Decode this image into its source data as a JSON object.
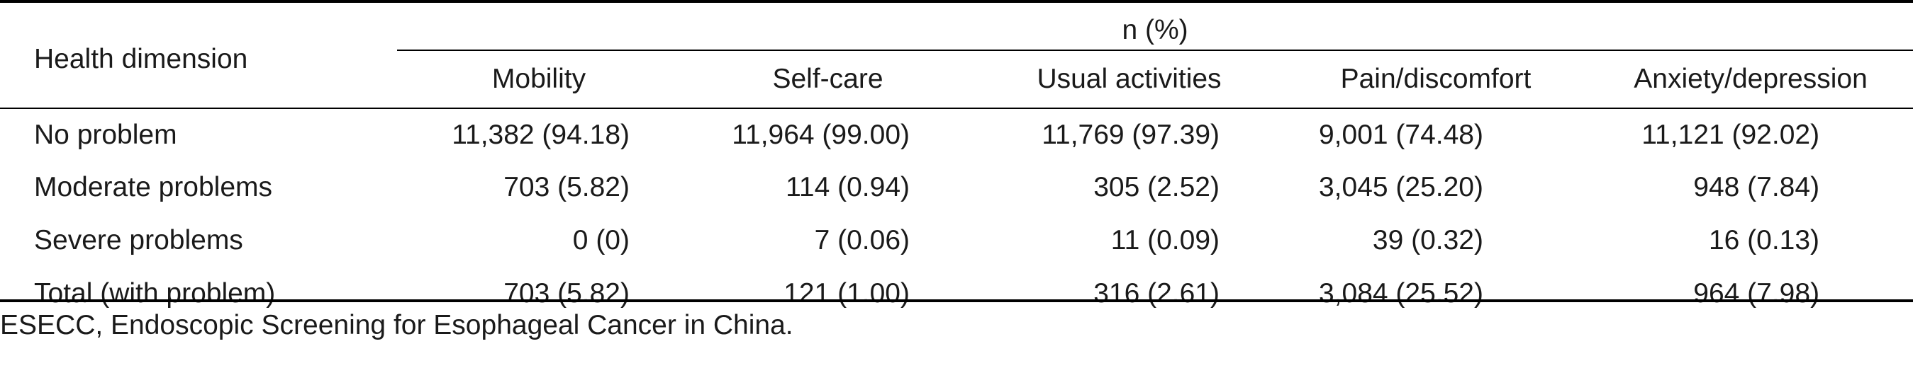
{
  "table": {
    "header": {
      "dimension_label": "Health dimension",
      "group_label": "n (%)",
      "columns": [
        "Mobility",
        "Self-care",
        "Usual activities",
        "Pain/discomfort",
        "Anxiety/depression"
      ]
    },
    "rows": [
      {
        "label": "No problem",
        "values": [
          "11,382 (94.18)",
          "11,964 (99.00)",
          "11,769 (97.39)",
          "9,001 (74.48)",
          "11,121 (92.02)"
        ]
      },
      {
        "label": "Moderate problems",
        "values": [
          "703 (5.82)",
          "114 (0.94)",
          "305 (2.52)",
          "3,045 (25.20)",
          "948 (7.84)"
        ]
      },
      {
        "label": "Severe problems",
        "values": [
          "0 (0)",
          "7 (0.06)",
          "11 (0.09)",
          "39 (0.32)",
          "16 (0.13)"
        ]
      },
      {
        "label": "Total (with problem)",
        "values": [
          "703 (5.82)",
          "121 (1.00)",
          "316 (2.61)",
          "3,084 (25.52)",
          "964 (7.98)"
        ]
      }
    ]
  },
  "footnote": "ESECC, Endoscopic Screening for Esophageal Cancer in China."
}
